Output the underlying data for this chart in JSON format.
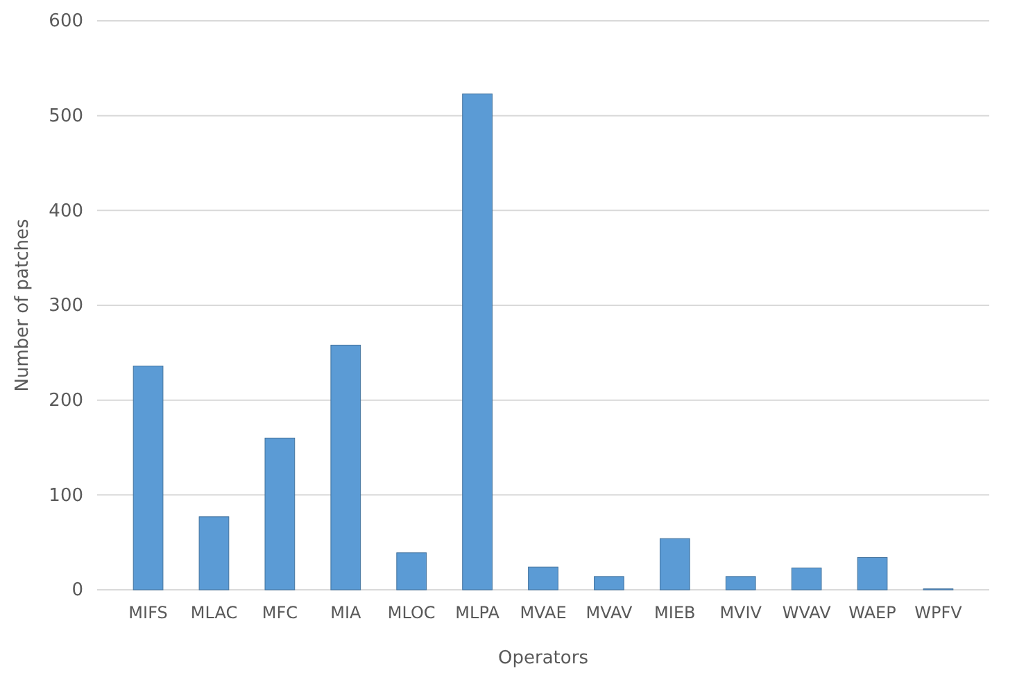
{
  "chart_data": {
    "type": "bar",
    "xlabel": "Operators",
    "ylabel": "Number of patches",
    "categories": [
      "MIFS",
      "MLAC",
      "MFC",
      "MIA",
      "MLOC",
      "MLPA",
      "MVAE",
      "MVAV",
      "MIEB",
      "MVIV",
      "WVAV",
      "WAEP",
      "WPFV"
    ],
    "values": [
      236,
      77,
      160,
      258,
      39,
      523,
      24,
      14,
      54,
      14,
      23,
      34,
      1
    ],
    "color": "#5b9bd5",
    "ylim": [
      0,
      600
    ],
    "yticks": [
      0,
      100,
      200,
      300,
      400,
      500,
      600
    ],
    "grid": "y"
  }
}
